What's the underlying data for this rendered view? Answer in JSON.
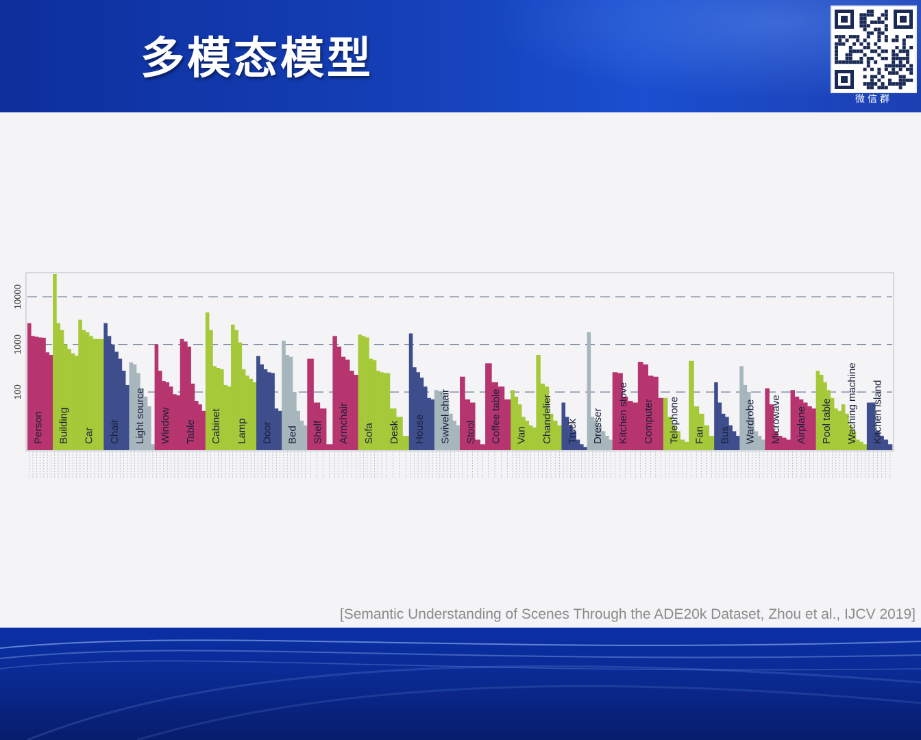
{
  "slide": {
    "title": "多模态模型",
    "qr_label": "微信群",
    "citation": "[Semantic Understanding of Scenes Through the ADE20k Dataset, Zhou et al., IJCV 2019]"
  },
  "colors": {
    "magenta": "#b7356e",
    "lime": "#a6c93a",
    "navy": "#3e4d8c",
    "grey": "#a7b6bd"
  },
  "chart_data": {
    "type": "bar",
    "yscale": "log",
    "ylim": [
      6,
      30000
    ],
    "y_ticks": [
      "100",
      "1000",
      "10000"
    ],
    "groups": [
      {
        "name": "Person",
        "color": "magenta",
        "values": [
          2800,
          1500,
          1450,
          1400,
          1380,
          680,
          600
        ]
      },
      {
        "name": "Building",
        "color": "lime",
        "values": [
          30000,
          2800,
          2000,
          1000,
          800,
          650,
          580
        ]
      },
      {
        "name": "Car",
        "color": "lime",
        "values": [
          3300,
          2000,
          1800,
          1500,
          1300,
          1300,
          1300
        ]
      },
      {
        "name": "Chair",
        "color": "navy",
        "values": [
          2800,
          1500,
          1000,
          700,
          500,
          280,
          140
        ]
      },
      {
        "name": "Light source",
        "color": "grey",
        "values": [
          420,
          380,
          250,
          120,
          80,
          50,
          8
        ]
      },
      {
        "name": "Window",
        "color": "magenta",
        "values": [
          1000,
          280,
          170,
          160,
          130,
          90,
          85
        ]
      },
      {
        "name": "Table",
        "color": "magenta",
        "values": [
          1300,
          1150,
          900,
          150,
          65,
          55,
          40
        ]
      },
      {
        "name": "Cabinet",
        "color": "lime",
        "values": [
          4700,
          2000,
          350,
          320,
          300,
          140,
          130
        ]
      },
      {
        "name": "Lamp",
        "color": "lime",
        "values": [
          2600,
          2000,
          1100,
          300,
          220,
          190,
          160
        ]
      },
      {
        "name": "Door",
        "color": "navy",
        "values": [
          570,
          380,
          300,
          260,
          250,
          45,
          40
        ]
      },
      {
        "name": "Bed",
        "color": "grey",
        "values": [
          1200,
          600,
          550,
          100,
          40,
          25,
          20
        ]
      },
      {
        "name": "Shelf",
        "color": "magenta",
        "values": [
          500,
          60,
          45,
          8
        ]
      },
      {
        "name": "Armchair",
        "color": "magenta",
        "values": [
          1500,
          900,
          550,
          480,
          280,
          230
        ]
      },
      {
        "name": "Sofa",
        "color": "lime",
        "values": [
          1600,
          1500,
          1400,
          500,
          470,
          280,
          260
        ]
      },
      {
        "name": "Desk",
        "color": "lime",
        "values": [
          250,
          45,
          30,
          12
        ]
      },
      {
        "name": "House",
        "color": "navy",
        "values": [
          1700,
          330,
          260,
          200,
          130,
          75,
          70
        ]
      },
      {
        "name": "Swivel chair",
        "color": "grey",
        "values": [
          110,
          100,
          90,
          70,
          35,
          25,
          20
        ]
      },
      {
        "name": "Stool",
        "color": "magenta",
        "values": [
          210,
          70,
          60,
          10,
          8
        ]
      },
      {
        "name": "Coffee table",
        "color": "magenta",
        "values": [
          400,
          160,
          130,
          70
        ]
      },
      {
        "name": "Van",
        "color": "lime",
        "values": [
          110,
          80,
          55,
          30,
          25,
          20,
          18
        ]
      },
      {
        "name": "Chandelier",
        "color": "lime",
        "values": [
          600,
          150,
          130,
          35,
          25,
          20
        ]
      },
      {
        "name": "Truck",
        "color": "navy",
        "values": [
          60,
          30,
          20,
          15,
          10,
          8,
          7
        ]
      },
      {
        "name": "Dresser",
        "color": "grey",
        "values": [
          1800,
          30,
          25,
          20,
          15,
          12,
          10
        ]
      },
      {
        "name": "Kitchen stove",
        "color": "magenta",
        "values": [
          260,
          250,
          80,
          65,
          60
        ]
      },
      {
        "name": "Computer",
        "color": "magenta",
        "values": [
          430,
          380,
          220,
          210,
          75
        ]
      },
      {
        "name": "Telephone",
        "color": "lime",
        "values": [
          75,
          30,
          20,
          15,
          10,
          9
        ]
      },
      {
        "name": "Fan",
        "color": "lime",
        "values": [
          450,
          50,
          35,
          20,
          12
        ]
      },
      {
        "name": "Bus",
        "color": "navy",
        "values": [
          160,
          60,
          35,
          30,
          20,
          15,
          12
        ]
      },
      {
        "name": "Wardrobe",
        "color": "grey",
        "values": [
          350,
          140,
          100,
          30,
          15,
          12,
          10
        ]
      },
      {
        "name": "Microwave",
        "color": "magenta",
        "values": [
          120,
          55,
          15,
          12,
          11,
          10
        ]
      },
      {
        "name": "Airplane",
        "color": "magenta",
        "values": [
          110,
          80,
          70,
          60,
          50,
          45
        ]
      },
      {
        "name": "Pool table",
        "color": "lime",
        "values": [
          280,
          230,
          160,
          110,
          75,
          45,
          40
        ]
      },
      {
        "name": "Waching machine",
        "color": "lime",
        "values": [
          55,
          35,
          20,
          15,
          10,
          9,
          8
        ]
      },
      {
        "name": "Kitchen island",
        "color": "navy",
        "values": [
          60,
          60,
          15,
          12,
          10,
          8
        ]
      }
    ]
  }
}
